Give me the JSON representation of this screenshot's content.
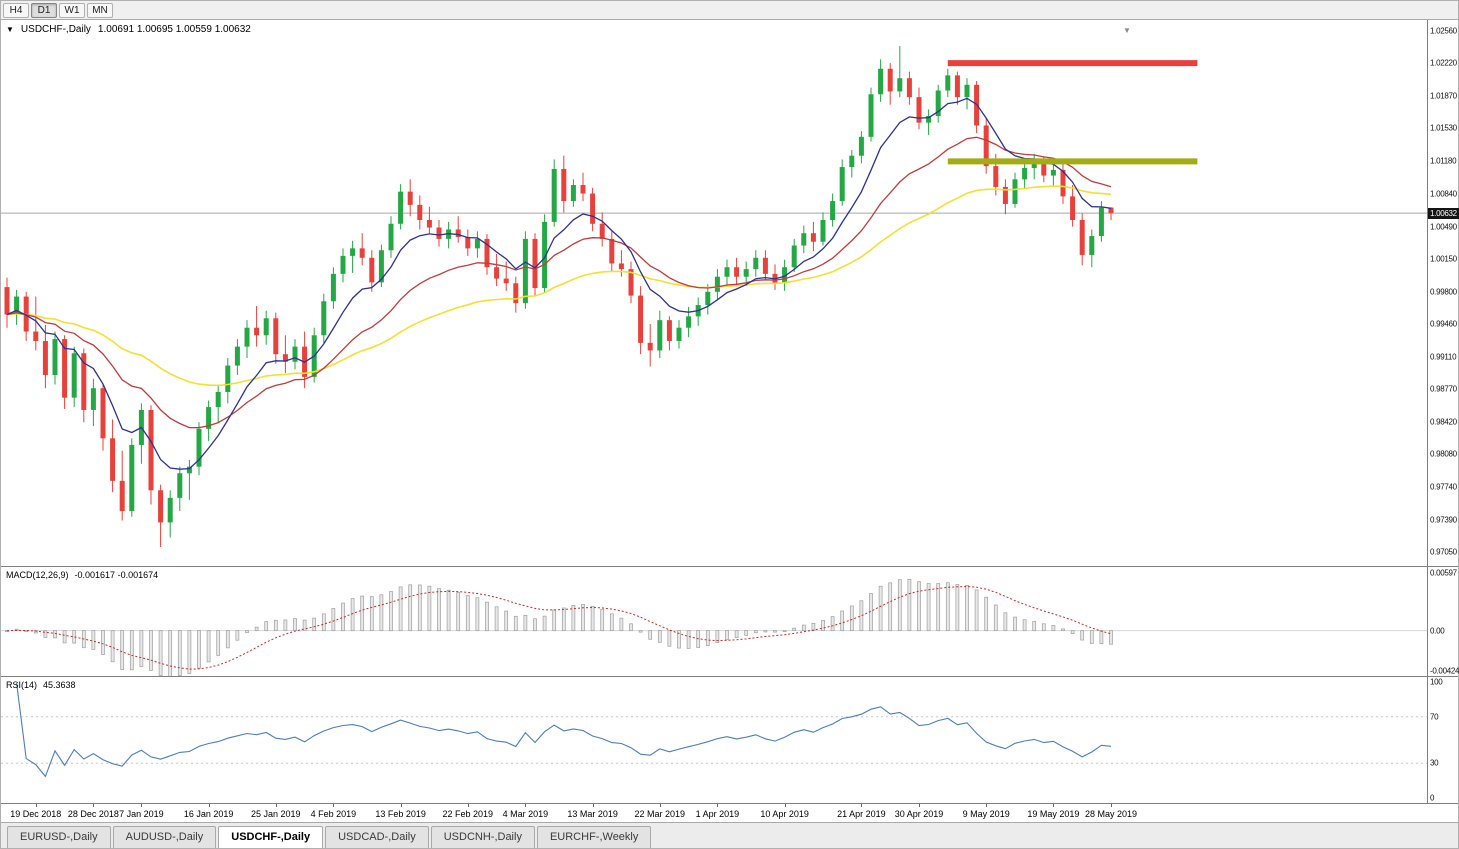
{
  "colors": {
    "up": "#23a843",
    "down": "#e8403a",
    "ma_fast": "#2e3192",
    "ma_mid": "#c13b3b",
    "ma_slow": "#f2e032",
    "macd_hist_fill": "#e8e8e8",
    "macd_hist_stroke": "#9e9e9e",
    "macd_signal": "#c52b2b",
    "rsi_line": "#4a7ebb",
    "resistance_line": "#e8413c",
    "support_line": "#a3ad13",
    "current_price_line": "#a6a6a6"
  },
  "toolbar": {
    "timeframe_buttons": [
      {
        "label": "H4",
        "active": false
      },
      {
        "label": "D1",
        "active": true
      },
      {
        "label": "W1",
        "active": false
      },
      {
        "label": "MN",
        "active": false
      }
    ]
  },
  "price_panel": {
    "title": "USDCHF-,Daily",
    "ohlc_text": "1.00691 1.00695 1.00559 1.00632",
    "current_price": "1.00632",
    "axis_labels": [
      "1.02560",
      "1.02220",
      "1.01870",
      "1.01530",
      "1.01180",
      "1.00840",
      "1.00490",
      "1.00150",
      "0.99800",
      "0.99460",
      "0.99110",
      "0.98770",
      "0.98420",
      "0.98080",
      "0.97740",
      "0.97390",
      "0.97050"
    ]
  },
  "macd_panel": {
    "label": "MACD(12,26,9)",
    "values": "-0.001617 -0.001674",
    "axis_labels": [
      "0.00597",
      "0.00",
      "-0.00424"
    ]
  },
  "rsi_panel": {
    "label": "RSI(14)",
    "value": "45.3638",
    "axis_labels": [
      "100",
      "70",
      "30",
      "0"
    ],
    "levels": [
      70,
      30
    ]
  },
  "tabs": [
    {
      "label": "EURUSD-,Daily",
      "active": false
    },
    {
      "label": "AUDUSD-,Daily",
      "active": false
    },
    {
      "label": "USDCHF-,Daily",
      "active": true
    },
    {
      "label": "USDCAD-,Daily",
      "active": false
    },
    {
      "label": "USDCNH-,Daily",
      "active": false
    },
    {
      "label": "EURCHF-,Weekly",
      "active": false
    }
  ],
  "chart_data": {
    "type": "candlestick",
    "symbol": "USDCHF-,Daily",
    "last_ohlc": {
      "open": 1.00691,
      "high": 1.00695,
      "low": 1.00559,
      "close": 1.00632
    },
    "last_close": 1.00632,
    "price_range": [
      0.96899,
      1.02676
    ],
    "candles_ohlc": [
      [
        0.9985,
        0.9995,
        0.9942,
        0.9956
      ],
      [
        0.9956,
        0.9982,
        0.9945,
        0.9975
      ],
      [
        0.9975,
        0.998,
        0.9928,
        0.9938
      ],
      [
        0.9938,
        0.9975,
        0.9918,
        0.9928
      ],
      [
        0.9928,
        0.9945,
        0.9878,
        0.9892
      ],
      [
        0.9892,
        0.9938,
        0.9882,
        0.993
      ],
      [
        0.993,
        0.9934,
        0.9856,
        0.9868
      ],
      [
        0.9868,
        0.9922,
        0.9858,
        0.9915
      ],
      [
        0.9915,
        0.992,
        0.9842,
        0.9855
      ],
      [
        0.9855,
        0.9888,
        0.9838,
        0.9878
      ],
      [
        0.9878,
        0.9882,
        0.9812,
        0.9825
      ],
      [
        0.9825,
        0.9845,
        0.9768,
        0.978
      ],
      [
        0.978,
        0.9812,
        0.9738,
        0.9748
      ],
      [
        0.9748,
        0.9825,
        0.9742,
        0.9818
      ],
      [
        0.9818,
        0.9862,
        0.9798,
        0.9855
      ],
      [
        0.9855,
        0.986,
        0.9755,
        0.977
      ],
      [
        0.977,
        0.9776,
        0.971,
        0.9736
      ],
      [
        0.9736,
        0.977,
        0.972,
        0.9762
      ],
      [
        0.9762,
        0.9795,
        0.9748,
        0.9788
      ],
      [
        0.9788,
        0.9802,
        0.976,
        0.9795
      ],
      [
        0.9795,
        0.9842,
        0.9786,
        0.9835
      ],
      [
        0.9835,
        0.9865,
        0.9822,
        0.9858
      ],
      [
        0.9858,
        0.9882,
        0.9842,
        0.9874
      ],
      [
        0.9874,
        0.991,
        0.9862,
        0.9902
      ],
      [
        0.9902,
        0.993,
        0.9892,
        0.9922
      ],
      [
        0.9922,
        0.995,
        0.991,
        0.9942
      ],
      [
        0.9942,
        0.9965,
        0.9922,
        0.9934
      ],
      [
        0.9934,
        0.996,
        0.9924,
        0.9952
      ],
      [
        0.9952,
        0.9958,
        0.9904,
        0.9914
      ],
      [
        0.9914,
        0.9934,
        0.9894,
        0.9906
      ],
      [
        0.9906,
        0.993,
        0.9898,
        0.9922
      ],
      [
        0.9922,
        0.9938,
        0.9878,
        0.989
      ],
      [
        0.989,
        0.9942,
        0.9884,
        0.9934
      ],
      [
        0.9934,
        0.9978,
        0.9926,
        0.997
      ],
      [
        0.997,
        1.0006,
        0.9962,
        0.9999
      ],
      [
        0.9999,
        1.0026,
        0.999,
        1.0018
      ],
      [
        1.0018,
        1.0034,
        1.0,
        1.0026
      ],
      [
        1.0026,
        1.0042,
        1.0008,
        1.0016
      ],
      [
        1.0016,
        1.0024,
        0.998,
        0.999
      ],
      [
        0.999,
        1.003,
        0.9985,
        1.0024
      ],
      [
        1.0024,
        1.006,
        1.0016,
        1.0052
      ],
      [
        1.0052,
        1.0094,
        1.0046,
        1.0086
      ],
      [
        1.0086,
        1.0099,
        1.006,
        1.0072
      ],
      [
        1.0072,
        1.0082,
        1.0046,
        1.0056
      ],
      [
        1.0056,
        1.007,
        1.0042,
        1.0048
      ],
      [
        1.0048,
        1.0056,
        1.0028,
        1.0036
      ],
      [
        1.0036,
        1.0054,
        1.0026,
        1.0046
      ],
      [
        1.0046,
        1.006,
        1.0032,
        1.0038
      ],
      [
        1.0038,
        1.0046,
        1.0018,
        1.0026
      ],
      [
        1.0026,
        1.0044,
        1.0016,
        1.0036
      ],
      [
        1.0036,
        1.0041,
        0.9998,
        1.0006
      ],
      [
        1.0006,
        1.002,
        0.9986,
        0.9994
      ],
      [
        0.9994,
        1.0012,
        0.9981,
        0.9989
      ],
      [
        0.9989,
        0.9996,
        0.9958,
        0.9968
      ],
      [
        0.9968,
        1.0044,
        0.9962,
        1.0036
      ],
      [
        1.0036,
        1.0042,
        0.9976,
        0.9984
      ],
      [
        0.9984,
        1.0062,
        0.9979,
        1.0054
      ],
      [
        1.0054,
        1.012,
        1.0049,
        1.011
      ],
      [
        1.011,
        1.0124,
        1.0064,
        1.0076
      ],
      [
        1.0076,
        1.0099,
        1.007,
        1.0093
      ],
      [
        1.0093,
        1.0106,
        1.0076,
        1.0084
      ],
      [
        1.0084,
        1.009,
        1.0044,
        1.0052
      ],
      [
        1.0052,
        1.0064,
        1.0028,
        1.0036
      ],
      [
        1.0036,
        1.0044,
        1.0002,
        1.001
      ],
      [
        1.001,
        1.0024,
        0.9996,
        1.0004
      ],
      [
        1.0004,
        1.0012,
        0.9968,
        0.9976
      ],
      [
        0.9976,
        0.9986,
        0.9914,
        0.9926
      ],
      [
        0.9926,
        0.9946,
        0.9901,
        0.9918
      ],
      [
        0.9918,
        0.996,
        0.991,
        0.995
      ],
      [
        0.995,
        0.9954,
        0.9918,
        0.9928
      ],
      [
        0.9928,
        0.995,
        0.992,
        0.9942
      ],
      [
        0.9942,
        0.9964,
        0.9932,
        0.9954
      ],
      [
        0.9954,
        0.9974,
        0.9944,
        0.9966
      ],
      [
        0.9966,
        0.9988,
        0.9956,
        0.998
      ],
      [
        0.998,
        1.0004,
        0.9972,
        0.9996
      ],
      [
        0.9996,
        1.0014,
        0.9986,
        1.0006
      ],
      [
        1.0006,
        1.0016,
        0.9988,
        0.9996
      ],
      [
        0.9996,
        1.0012,
        0.9986,
        1.0004
      ],
      [
        1.0004,
        1.0024,
        0.9996,
        1.0016
      ],
      [
        1.0016,
        1.0024,
        0.9992,
        0.9999
      ],
      [
        0.9999,
        1.0009,
        0.9982,
        0.9989
      ],
      [
        0.9989,
        1.0014,
        0.9981,
        1.0006
      ],
      [
        1.0006,
        1.0036,
        1.0001,
        1.0029
      ],
      [
        1.0029,
        1.005,
        1.0021,
        1.0042
      ],
      [
        1.0042,
        1.0054,
        1.0023,
        1.0033
      ],
      [
        1.0033,
        1.0064,
        1.0029,
        1.0056
      ],
      [
        1.0056,
        1.0084,
        1.0049,
        1.0076
      ],
      [
        1.0076,
        1.012,
        1.0071,
        1.0112
      ],
      [
        1.0112,
        1.013,
        1.0101,
        1.0124
      ],
      [
        1.0124,
        1.015,
        1.0116,
        1.0144
      ],
      [
        1.0144,
        1.0196,
        1.0139,
        1.0189
      ],
      [
        1.0189,
        1.0226,
        1.0181,
        1.0216
      ],
      [
        1.0216,
        1.0222,
        1.0178,
        1.0192
      ],
      [
        1.0192,
        1.024,
        1.0186,
        1.0206
      ],
      [
        1.0206,
        1.0213,
        1.0178,
        1.0186
      ],
      [
        1.0186,
        1.0196,
        1.0152,
        1.0159
      ],
      [
        1.0159,
        1.0173,
        1.0146,
        1.0166
      ],
      [
        1.0166,
        1.0199,
        1.0159,
        1.0193
      ],
      [
        1.0193,
        1.0216,
        1.0186,
        1.0209
      ],
      [
        1.0209,
        1.0213,
        1.0178,
        1.0186
      ],
      [
        1.0186,
        1.0206,
        1.0173,
        1.0199
      ],
      [
        1.0199,
        1.0203,
        1.0148,
        1.0156
      ],
      [
        1.0156,
        1.0163,
        1.0105,
        1.0113
      ],
      [
        1.0113,
        1.0126,
        1.0082,
        1.0091
      ],
      [
        1.0091,
        1.0099,
        1.0062,
        1.0073
      ],
      [
        1.0073,
        1.0106,
        1.0069,
        1.0099
      ],
      [
        1.0099,
        1.0119,
        1.0089,
        1.0111
      ],
      [
        1.0111,
        1.0126,
        1.0099,
        1.0119
      ],
      [
        1.0119,
        1.0123,
        1.0096,
        1.0103
      ],
      [
        1.0103,
        1.0116,
        1.0091,
        1.0109
      ],
      [
        1.0109,
        1.0119,
        1.0073,
        1.0081
      ],
      [
        1.0081,
        1.0093,
        1.0049,
        1.0056
      ],
      [
        1.0056,
        1.0063,
        1.0008,
        1.0019
      ],
      [
        1.0019,
        1.0046,
        1.0006,
        1.0039
      ],
      [
        1.0039,
        1.0076,
        1.0033,
        1.0069
      ],
      [
        1.00691,
        1.00695,
        1.00559,
        1.00632
      ]
    ],
    "time_labels": [
      {
        "text": "19 Dec 2018",
        "index": 3
      },
      {
        "text": "28 Dec 2018",
        "index": 9
      },
      {
        "text": "7 Jan 2019",
        "index": 14
      },
      {
        "text": "16 Jan 2019",
        "index": 21
      },
      {
        "text": "25 Jan 2019",
        "index": 28
      },
      {
        "text": "4 Feb 2019",
        "index": 34
      },
      {
        "text": "13 Feb 2019",
        "index": 41
      },
      {
        "text": "22 Feb 2019",
        "index": 48
      },
      {
        "text": "4 Mar 2019",
        "index": 54
      },
      {
        "text": "13 Mar 2019",
        "index": 61
      },
      {
        "text": "22 Mar 2019",
        "index": 68
      },
      {
        "text": "1 Apr 2019",
        "index": 74
      },
      {
        "text": "10 Apr 2019",
        "index": 81
      },
      {
        "text": "21 Apr 2019",
        "index": 89
      },
      {
        "text": "30 Apr 2019",
        "index": 95
      },
      {
        "text": "9 May 2019",
        "index": 102
      },
      {
        "text": "19 May 2019",
        "index": 109
      },
      {
        "text": "28 May 2019",
        "index": 115
      }
    ],
    "moving_averages": [
      {
        "period": 45,
        "color": "#f2e032",
        "width": 1.6
      },
      {
        "period": 20,
        "color": "#c13b3b",
        "width": 1.3
      },
      {
        "period": 8,
        "color": "#2e3192",
        "width": 1.3
      }
    ],
    "horizontal_lines": [
      {
        "name": "resistance-line",
        "price": 1.0222,
        "start_index": 98,
        "end_index": 124,
        "color": "#e8413c",
        "thickness": 6
      },
      {
        "name": "support-line",
        "price": 1.0118,
        "start_index": 98,
        "end_index": 124,
        "color": "#a3ad13",
        "thickness": 6
      }
    ],
    "indicators": {
      "macd": {
        "fast": 12,
        "slow": 26,
        "signal": 9,
        "range": [
          -0.0047,
          0.0066
        ],
        "last_macd": -0.001617,
        "last_signal": -0.001674
      },
      "rsi": {
        "period": 14,
        "range": [
          0,
          100
        ],
        "levels": [
          70,
          30
        ],
        "last_value": 45.3638
      }
    }
  }
}
